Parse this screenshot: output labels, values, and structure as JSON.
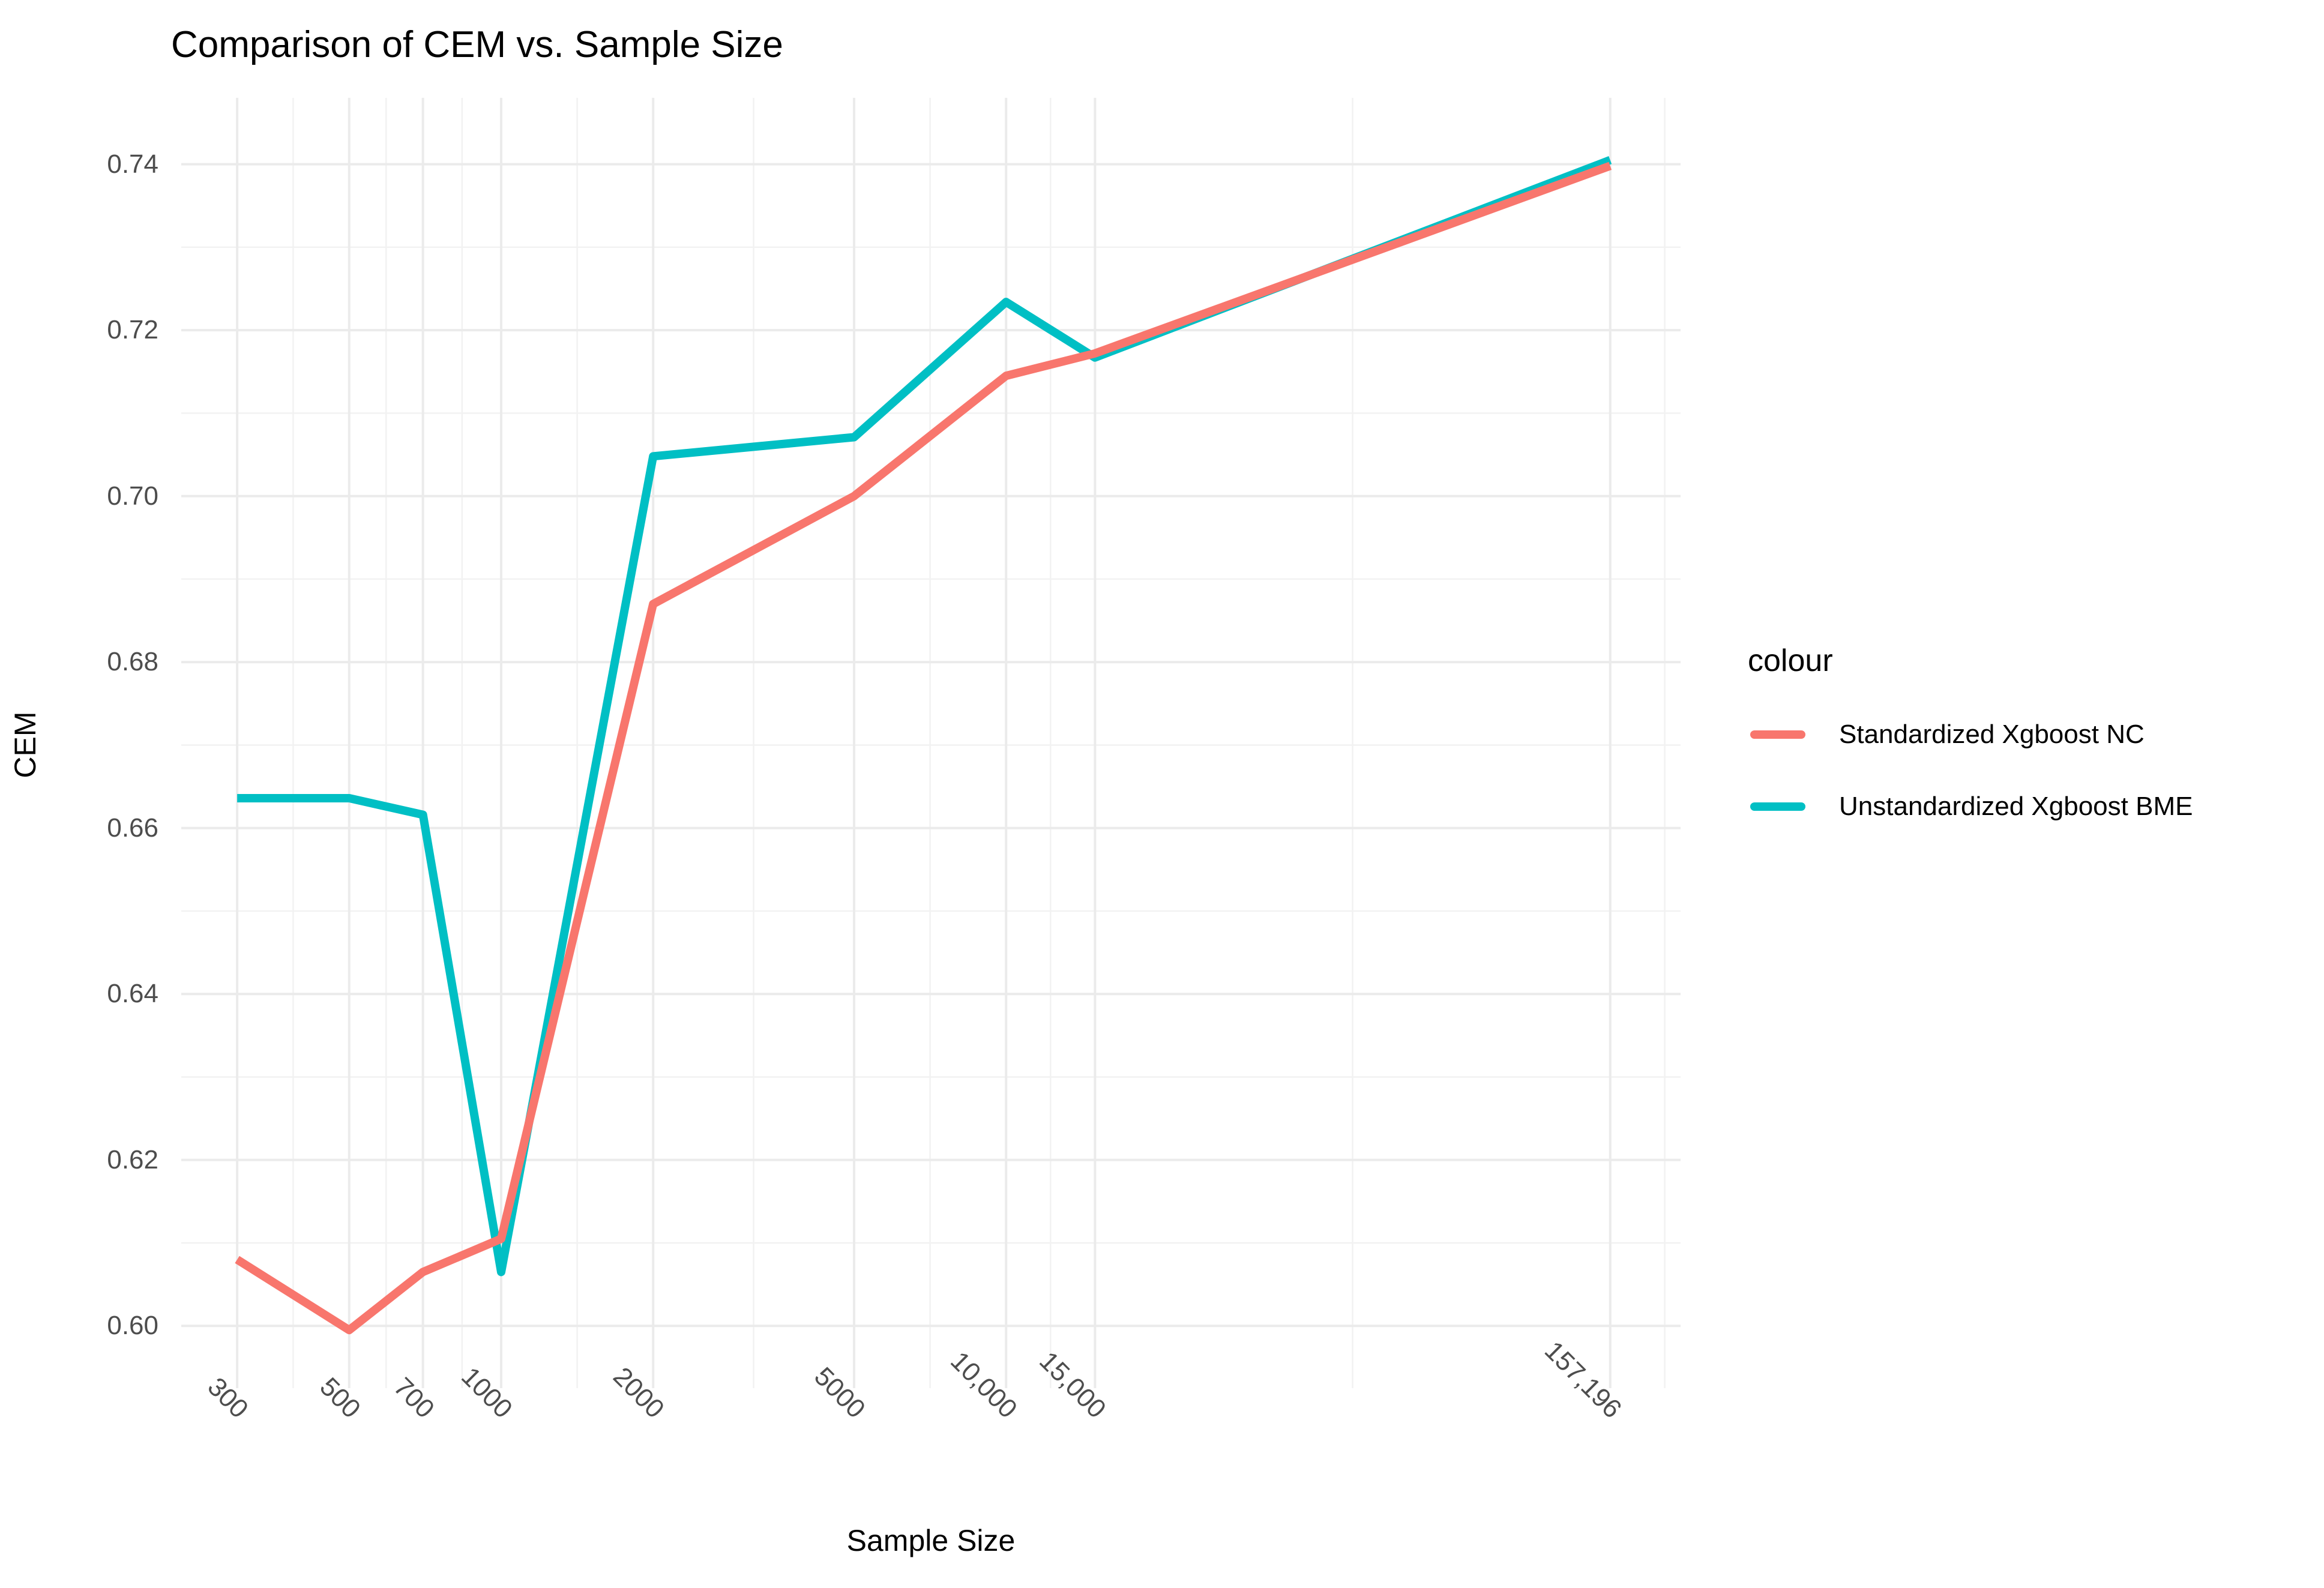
{
  "title": "Comparison of CEM vs. Sample Size",
  "axes": {
    "x": {
      "label": "Sample Size",
      "scale": "log10",
      "domain": [
        232.5,
        216700
      ],
      "ticks": [
        300,
        500,
        700,
        1000,
        2000,
        5000,
        10000,
        15000,
        157196
      ],
      "tick_labels": [
        "300",
        "500",
        "700",
        "1000",
        "2000",
        "5000",
        "10,000",
        "15,000",
        "157,196"
      ],
      "minor_extra": [
        201600
      ]
    },
    "y": {
      "label": "CEM",
      "domain": [
        0.5925,
        0.748
      ],
      "ticks": [
        0.6,
        0.62,
        0.64,
        0.66,
        0.68,
        0.7,
        0.72,
        0.74
      ],
      "tick_labels": [
        "0.60",
        "0.62",
        "0.64",
        "0.66",
        "0.68",
        "0.70",
        "0.72",
        "0.74"
      ],
      "minor_step": 0.01
    }
  },
  "legend": {
    "title": "colour",
    "items": [
      {
        "label": "Standardized Xgboost NC",
        "color": "#F8766D"
      },
      {
        "label": "Unstandardized Xgboost BME",
        "color": "#00BFC4"
      }
    ]
  },
  "chart_data": {
    "type": "line",
    "title": "Comparison of CEM vs. Sample Size",
    "xlabel": "Sample Size",
    "ylabel": "CEM",
    "xscale": "log",
    "x": [
      300,
      500,
      700,
      1000,
      2000,
      5000,
      10000,
      15000,
      157196
    ],
    "series": [
      {
        "name": "Standardized Xgboost NC",
        "color": "#F8766D",
        "values": [
          0.608,
          0.5995,
          0.6065,
          0.6105,
          0.687,
          0.7,
          0.7145,
          0.7172,
          0.7398
        ]
      },
      {
        "name": "Unstandardized Xgboost BME",
        "color": "#00BFC4",
        "values": [
          0.6636,
          0.6636,
          0.6616,
          0.6065,
          0.7048,
          0.7071,
          0.7234,
          0.7167,
          0.7405
        ]
      }
    ],
    "ylim": [
      0.5925,
      0.748
    ],
    "xlim": [
      232.5,
      216700
    ],
    "grid": true,
    "legend_position": "right",
    "grid_major_color": "#EBEBEB",
    "grid_minor_color": "#F2F2F2",
    "background": "#FFFFFF"
  }
}
